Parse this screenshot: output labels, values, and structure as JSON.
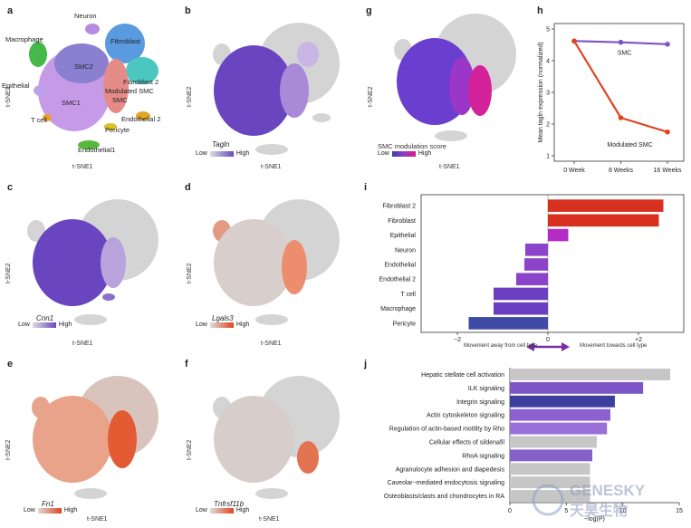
{
  "panels": {
    "a": {
      "letter": "a",
      "xlabel": "t-SNE1",
      "ylabel": "t-SNE2",
      "clusters": [
        "Neuron",
        "Macrophage",
        "Fibroblast",
        "SMC2",
        "Epithelial",
        "Fibroblast 2",
        "Modulated SMC",
        "SMC1",
        "T cell",
        "Endothelial 2",
        "Pericyte",
        "Endothelial1"
      ]
    },
    "b": {
      "letter": "b",
      "xlabel": "t-SNE1",
      "ylabel": "t-SNE2",
      "gene": "Tagln",
      "low": "Low",
      "high": "High"
    },
    "c": {
      "letter": "c",
      "xlabel": "t-SNE1",
      "ylabel": "t-SNE2",
      "gene": "Cnn1",
      "low": "Low",
      "high": "High"
    },
    "d": {
      "letter": "d",
      "xlabel": "t-SNE1",
      "ylabel": "t-SNE2",
      "gene": "Lgals3",
      "low": "Low",
      "high": "High"
    },
    "e": {
      "letter": "e",
      "xlabel": "t-SNE1",
      "ylabel": "t-SNE2",
      "gene": "Fn1",
      "low": "Low",
      "high": "High"
    },
    "f": {
      "letter": "f",
      "xlabel": "t-SNE1",
      "ylabel": "t-SNE2",
      "gene": "Tnfrsf11b",
      "low": "Low",
      "high": "High"
    },
    "g": {
      "letter": "g",
      "xlabel": "t-SNE1",
      "ylabel": "t-SNE2",
      "score_label": "SMC modulation score",
      "low": "Low",
      "high": "High"
    },
    "h": {
      "letter": "h"
    },
    "i": {
      "letter": "i",
      "left_arrow": "Movement away from cell type",
      "right_arrow": "Movement towards cell type"
    },
    "j": {
      "letter": "j"
    }
  },
  "colors": {
    "purple": "#6a4bbf",
    "red": "#e0431c",
    "grey": "#c6c6c6",
    "orange": "#e8774a"
  },
  "watermark": {
    "line1": "GENESKY",
    "line2": "天昊生物"
  },
  "chart_data": [
    {
      "type": "line",
      "panel": "h",
      "title": "",
      "xlabel": "",
      "ylabel": "Mean tagln expression (normalized)",
      "categories": [
        "0 Week",
        "8 Weeks",
        "16 Weeks"
      ],
      "ylim": [
        1,
        5
      ],
      "yticks": [
        1,
        2,
        3,
        4,
        5
      ],
      "series": [
        {
          "name": "SMC",
          "values": [
            4.62,
            4.58,
            4.52
          ],
          "color": "#7b55c6"
        },
        {
          "name": "Modulated SMC",
          "values": [
            4.62,
            2.2,
            1.75
          ],
          "color": "#e0431c"
        }
      ]
    },
    {
      "type": "bar",
      "orientation": "horizontal",
      "panel": "i",
      "categories": [
        "Fibroblast 2",
        "Fibroblast",
        "Epithelial",
        "Neuron",
        "Endothelial",
        "Endothelial 2",
        "T cell",
        "Macrophage",
        "Pericyte"
      ],
      "values": [
        2.55,
        2.45,
        0.45,
        -0.5,
        -0.52,
        -0.7,
        -1.2,
        -1.2,
        -1.75
      ],
      "colors": [
        "#d8301e",
        "#d8301e",
        "#b32cc4",
        "#8a43c9",
        "#8a43c9",
        "#8a43c9",
        "#6a3fc1",
        "#6a3fc1",
        "#3f4aa6"
      ],
      "xlim": [
        -2.8,
        3.0
      ],
      "xticks": [
        {
          "v": -2,
          "label": "−2"
        },
        {
          "v": 0,
          "label": "0"
        },
        {
          "v": 2,
          "label": "+2"
        }
      ]
    },
    {
      "type": "bar",
      "orientation": "horizontal",
      "panel": "j",
      "xlabel": "−log(P)",
      "categories": [
        "Hepatic stellate cell activation",
        "ILK signaling",
        "Integrin signaling",
        "Actin cytoskeleton signaling",
        "Regulation of actin-based motility by Rho",
        "Cellular effects of sildenafil",
        "RhoA signaling",
        "Agranulocyte adhesion and diapedesis",
        "Caveolar−mediated endocytosis signaling",
        "Osteoblasts/clasts and chondrocytes in RA"
      ],
      "values": [
        14.2,
        11.8,
        9.3,
        8.9,
        8.6,
        7.7,
        7.3,
        7.1,
        7.1,
        7.1
      ],
      "colors": [
        "#c6c6c6",
        "#7c56c6",
        "#3d3f9e",
        "#8c60d0",
        "#9a6fd8",
        "#c6c6c6",
        "#8560c8",
        "#c6c6c6",
        "#c6c6c6",
        "#c6c6c6"
      ],
      "xlim": [
        0,
        15
      ],
      "xticks": [
        {
          "v": 0,
          "label": "0"
        },
        {
          "v": 5,
          "label": "5"
        },
        {
          "v": 10,
          "label": "10"
        },
        {
          "v": 15,
          "label": "15"
        }
      ]
    }
  ]
}
